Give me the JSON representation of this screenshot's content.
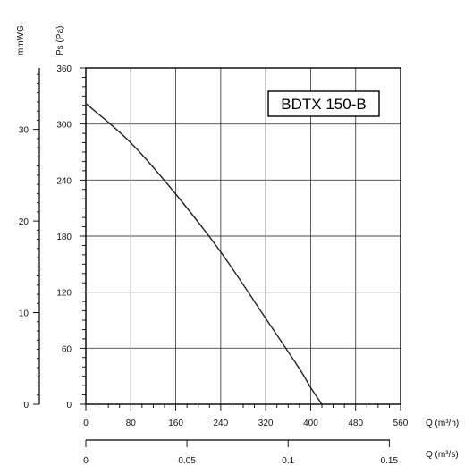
{
  "chart_data": {
    "type": "line",
    "title": "BDTX 150-B",
    "y_left_primary": {
      "label": "Ps (Pa)",
      "ticks": [
        "0",
        "60",
        "120",
        "180",
        "240",
        "300",
        "360"
      ],
      "range": [
        0,
        360
      ]
    },
    "y_left_secondary": {
      "label": "mmWG",
      "ticks": [
        "0",
        "10",
        "20",
        "30"
      ],
      "range": [
        0,
        36.7
      ]
    },
    "x_primary": {
      "label": "Q (m³/h)",
      "ticks": [
        "0",
        "80",
        "160",
        "240",
        "320",
        "400",
        "480",
        "560"
      ],
      "range": [
        0,
        560
      ]
    },
    "x_secondary": {
      "label": "Q (m³/s)",
      "ticks": [
        "0",
        "0.05",
        "0.1",
        "0.15"
      ],
      "range": [
        0,
        0.1556
      ]
    },
    "grid": true,
    "series": [
      {
        "x": [
          0,
          80,
          160,
          240,
          320,
          380,
          400,
          420
        ],
        "y": [
          322,
          280,
          225,
          163,
          92,
          38,
          18,
          0
        ]
      }
    ],
    "colors": {
      "line": "#222222",
      "grid": "#444444",
      "frame": "#000000"
    }
  }
}
